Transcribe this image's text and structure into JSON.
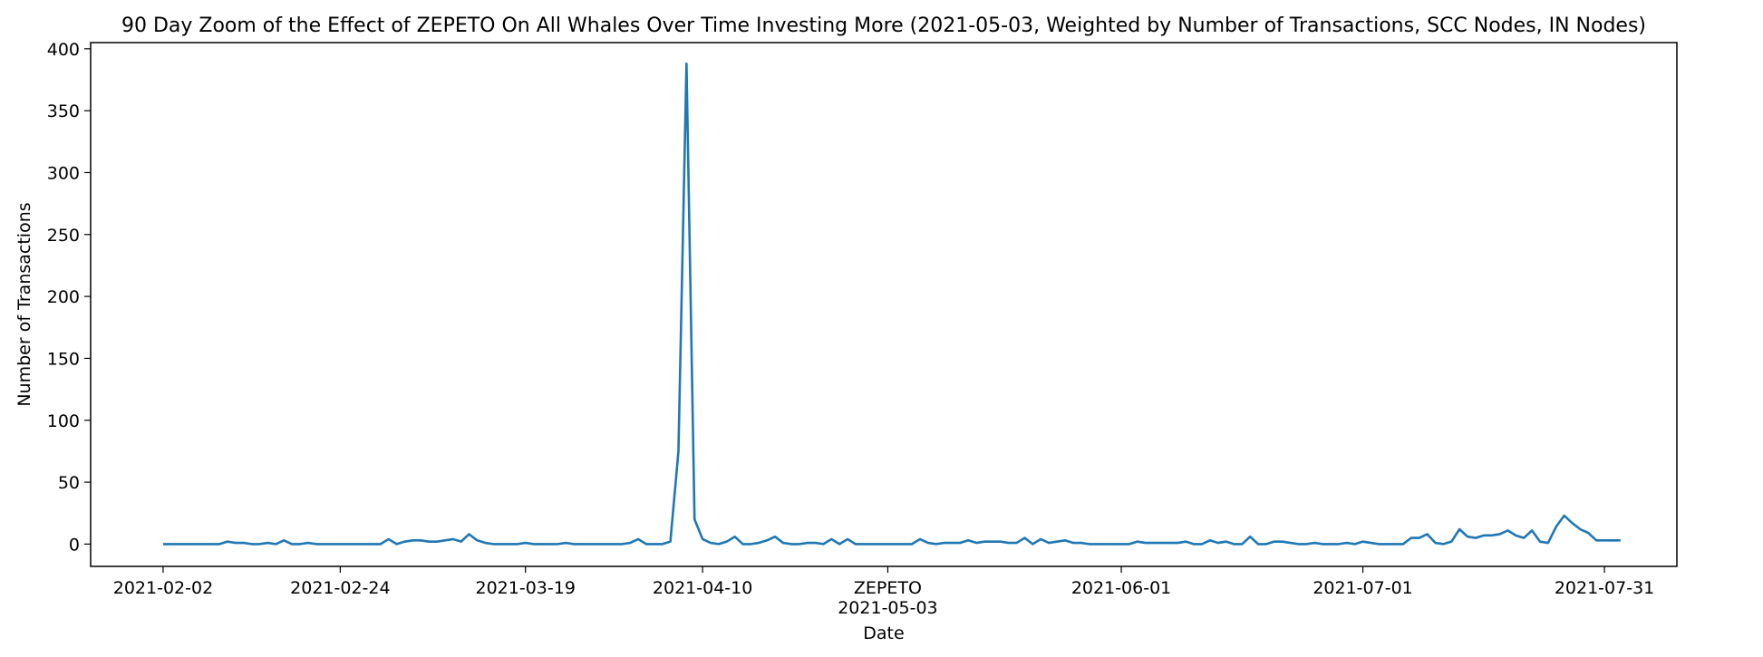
{
  "chart_data": {
    "type": "line",
    "title": "90 Day Zoom of the Effect of ZEPETO On All Whales Over Time Investing More (2021-05-03, Weighted by Number of Transactions, SCC Nodes, IN Nodes)",
    "xlabel": "Date",
    "ylabel": "Number of Transactions",
    "x_start": "2021-02-02",
    "x_end": "2021-07-31",
    "xlim": [
      "2021-01-24",
      "2021-08-09"
    ],
    "ylim": [
      -18,
      405
    ],
    "grid": false,
    "legend": "none",
    "line_color": "#1f77b4",
    "x_ticks": [
      {
        "date": "2021-02-02",
        "label": "2021-02-02"
      },
      {
        "date": "2021-02-24",
        "label": "2021-02-24"
      },
      {
        "date": "2021-03-19",
        "label": "2021-03-19"
      },
      {
        "date": "2021-04-10",
        "label": "2021-04-10"
      },
      {
        "date": "2021-05-03",
        "label": "2021-05-03"
      },
      {
        "date": "2021-06-01",
        "label": "2021-06-01"
      },
      {
        "date": "2021-07-01",
        "label": "2021-07-01"
      },
      {
        "date": "2021-07-31",
        "label": "2021-07-31"
      }
    ],
    "event_marker": {
      "date": "2021-05-03",
      "label": "ZEPETO"
    },
    "y_ticks": [
      0,
      50,
      100,
      150,
      200,
      250,
      300,
      350,
      400
    ],
    "series": [
      {
        "values": [
          0,
          0,
          0,
          0,
          0,
          0,
          0,
          0,
          2,
          1,
          1,
          0,
          0,
          1,
          0,
          3,
          0,
          0,
          1,
          0,
          0,
          0,
          0,
          0,
          0,
          0,
          0,
          0,
          4,
          0,
          2,
          3,
          3,
          2,
          2,
          3,
          4,
          2,
          8,
          3,
          1,
          0,
          0,
          0,
          0,
          1,
          0,
          0,
          0,
          0,
          1,
          0,
          0,
          0,
          0,
          0,
          0,
          0,
          1,
          4,
          0,
          0,
          0,
          2,
          75,
          388,
          20,
          4,
          1,
          0,
          2,
          6,
          0,
          0,
          1,
          3,
          6,
          1,
          0,
          0,
          1,
          1,
          0,
          4,
          0,
          4,
          0,
          0,
          0,
          0,
          0,
          0,
          0,
          0,
          4,
          1,
          0,
          1,
          1,
          1,
          3,
          1,
          2,
          2,
          2,
          1,
          1,
          5,
          0,
          4,
          1,
          2,
          3,
          1,
          1,
          0,
          0,
          0,
          0,
          0,
          0,
          2,
          1,
          1,
          1,
          1,
          1,
          2,
          0,
          0,
          3,
          1,
          2,
          0,
          0,
          6,
          0,
          0,
          2,
          2,
          1,
          0,
          0,
          1,
          0,
          0,
          0,
          1,
          0,
          2,
          1,
          0,
          0,
          0,
          0,
          5,
          5,
          8,
          1,
          0,
          2,
          12,
          6,
          5,
          7,
          7,
          8,
          11,
          7,
          5,
          11,
          2,
          1,
          14,
          23,
          17,
          12,
          9,
          3,
          3,
          3,
          3
        ]
      }
    ]
  }
}
